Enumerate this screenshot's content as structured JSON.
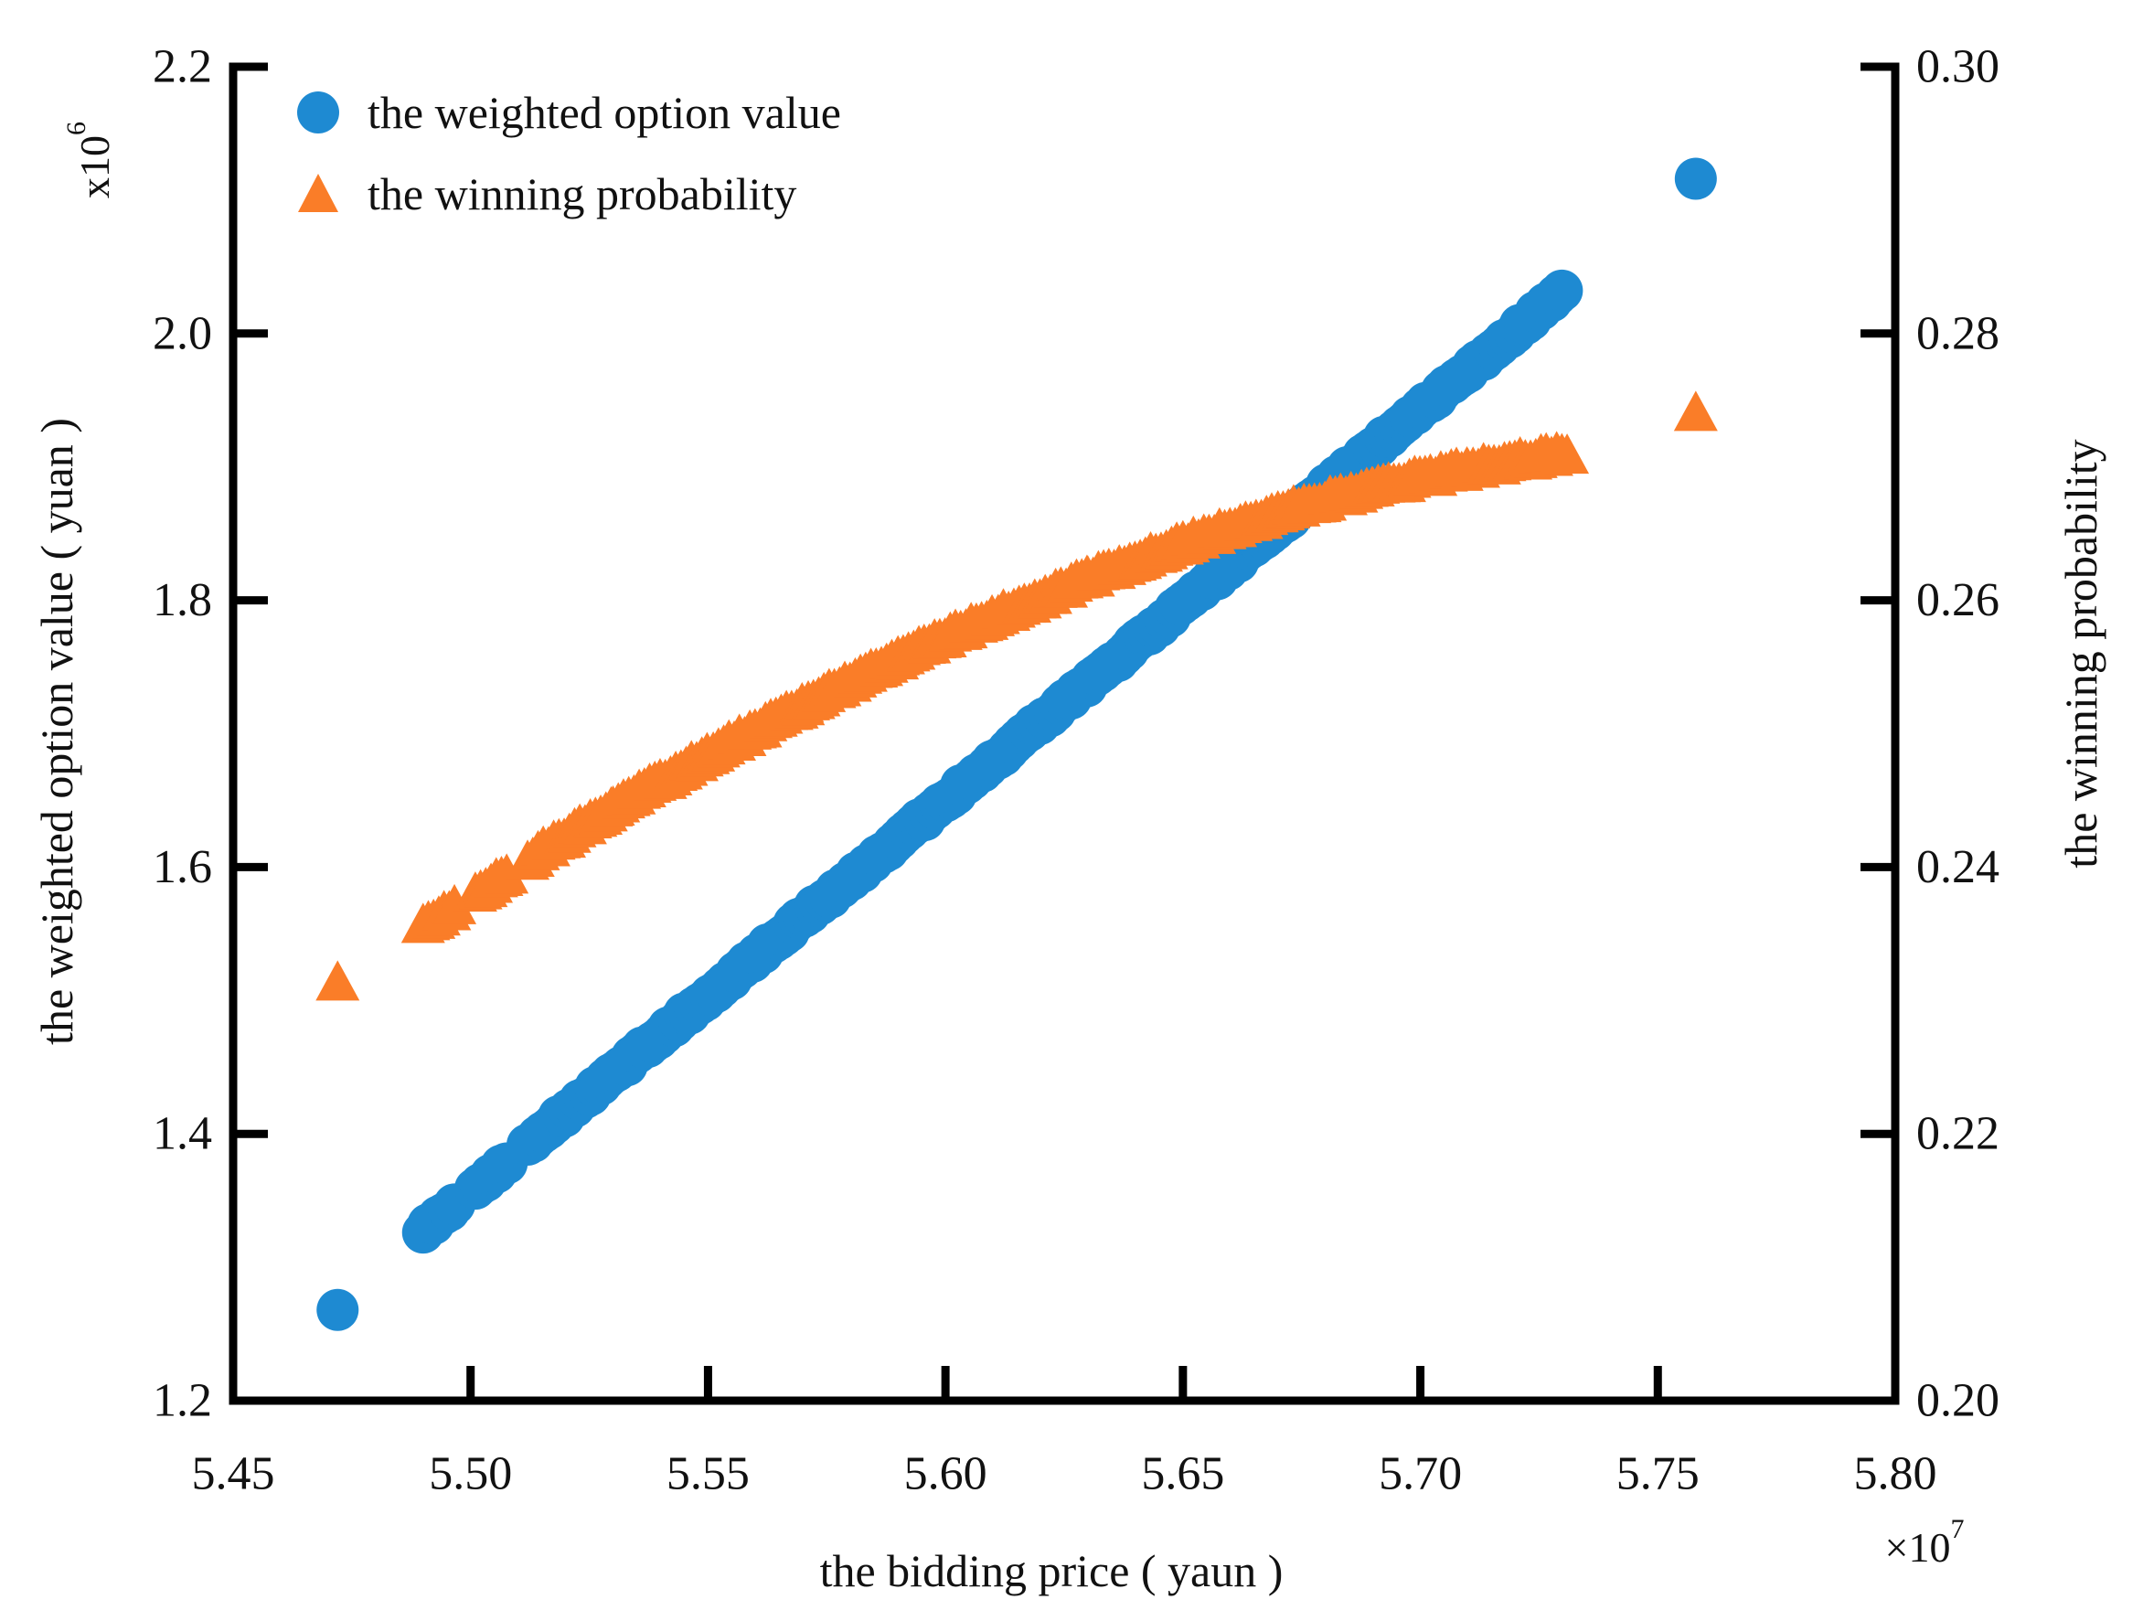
{
  "figure": {
    "background": "#ffffff",
    "text_color": "#111111",
    "frame_color": "#000000"
  },
  "legend": {
    "items": [
      {
        "label": "the weighted option value",
        "marker": "circle",
        "color": "#1E8AD2"
      },
      {
        "label": "the winning probability",
        "marker": "triangle",
        "color": "#FA7D28"
      }
    ]
  },
  "chart_data": {
    "type": "scatter",
    "title": "",
    "x_axis": {
      "label": "the bidding price ( yaun )",
      "multiplier_base": "×10",
      "multiplier_exp": "7",
      "range": [
        5.45,
        5.8
      ],
      "ticks": [
        5.45,
        5.5,
        5.55,
        5.6,
        5.65,
        5.7,
        5.75,
        5.8
      ],
      "tick_labels": [
        "5.45",
        "5.50",
        "5.55",
        "5.60",
        "5.65",
        "5.70",
        "5.75",
        "5.80"
      ]
    },
    "y_left_axis": {
      "label": "the weighted option value ( yuan )",
      "multiplier_base": "x10",
      "multiplier_exp": "6",
      "range": [
        1.2,
        2.2
      ],
      "ticks": [
        2.2,
        2.0,
        1.8,
        1.6,
        1.4,
        1.2
      ],
      "tick_labels": [
        "2.2",
        "2.0",
        "1.8",
        "1.6",
        "1.4",
        "1.2"
      ]
    },
    "y_right_axis": {
      "label": "the winning probability",
      "range": [
        0.2,
        0.3
      ],
      "ticks": [
        0.3,
        0.28,
        0.26,
        0.24,
        0.22,
        0.2
      ],
      "tick_labels": [
        "0.30",
        "0.28",
        "0.26",
        "0.24",
        "0.22",
        "0.20"
      ]
    },
    "series": [
      {
        "name": "the weighted option value",
        "axis": "left",
        "marker": "circle",
        "color": "#1E8AD2",
        "outliers": [
          [
            5.472,
            1.268
          ],
          [
            5.758,
            2.116
          ]
        ],
        "dense_segments": [
          [
            [
              5.49,
              1.327
            ],
            [
              5.497,
              1.348
            ]
          ],
          [
            [
              5.501,
              1.359
            ],
            [
              5.508,
              1.38
            ]
          ],
          [
            [
              5.512,
              1.392
            ],
            [
              5.73,
              2.031
            ]
          ]
        ]
      },
      {
        "name": "the winning probability",
        "axis": "right",
        "marker": "triangle",
        "color": "#FA7D28",
        "outliers": [
          [
            5.472,
            0.2313
          ],
          [
            5.758,
            0.274
          ]
        ],
        "dense_segments": [
          [
            [
              5.49,
              0.2355
            ],
            [
              5.497,
              0.2371
            ]
          ],
          [
            [
              5.501,
              0.238
            ],
            [
              5.508,
              0.2396
            ]
          ],
          [
            [
              5.512,
              0.2405
            ],
            [
              5.53,
              0.2444
            ],
            [
              5.55,
              0.2484
            ],
            [
              5.57,
              0.2521
            ],
            [
              5.59,
              0.2556
            ],
            [
              5.61,
              0.2587
            ],
            [
              5.63,
              0.2616
            ],
            [
              5.65,
              0.2642
            ],
            [
              5.67,
              0.2665
            ],
            [
              5.69,
              0.2684
            ],
            [
              5.71,
              0.2698
            ],
            [
              5.731,
              0.271
            ]
          ]
        ]
      }
    ]
  }
}
